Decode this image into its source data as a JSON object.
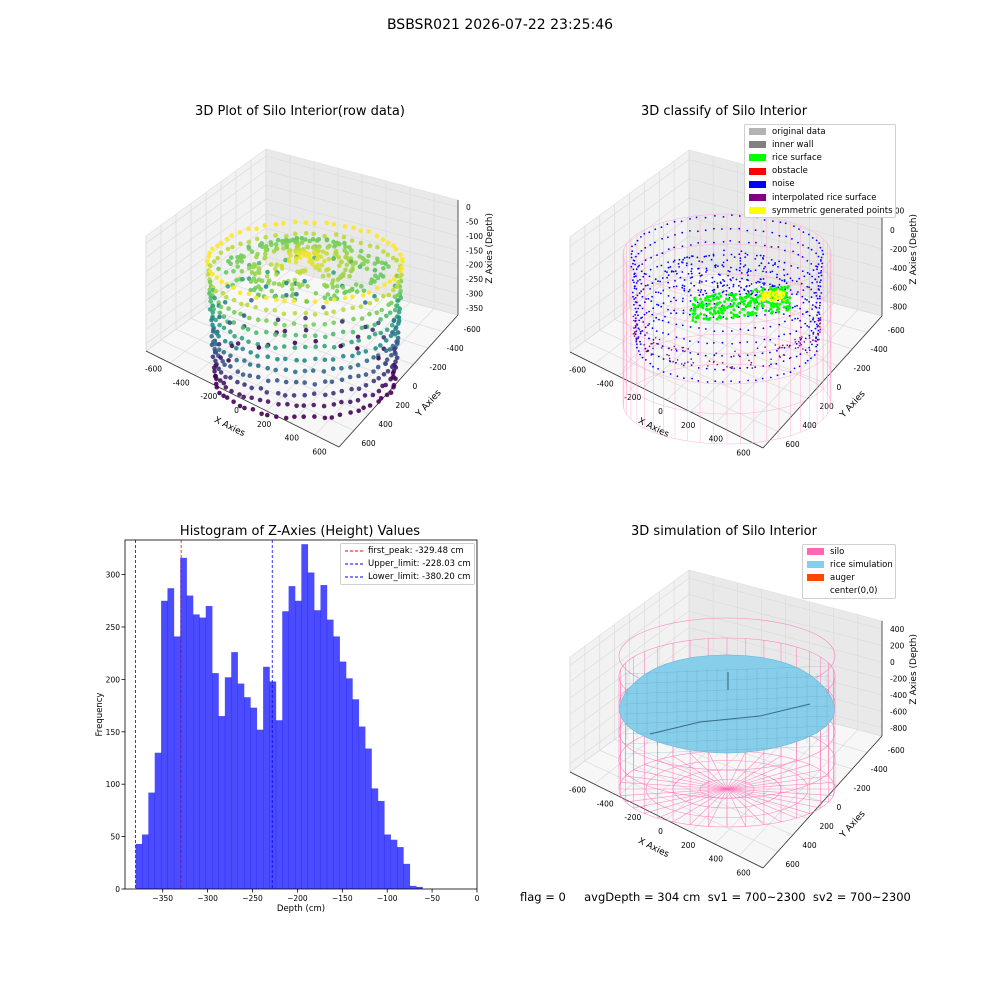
{
  "suptitle": "BSBSR021 2026-07-22 23:25:46",
  "footer": "flag = 0     avgDepth = 304 cm  sv1 = 700~2300  sv2 = 700~2300",
  "chart_data": [
    {
      "type": "scatter",
      "projection": "3d",
      "title": "3D Plot of Silo Interior(row data)",
      "xlabel": "X Axies",
      "ylabel": "Y Axies",
      "zlabel": "Z Axies (Depth)",
      "xticks": [
        "-600",
        "-400",
        "-200",
        "0",
        "200",
        "400",
        "600"
      ],
      "yticks": [
        "-600",
        "-400",
        "-200",
        "0",
        "200",
        "400",
        "600"
      ],
      "zticks": [
        "0",
        "-50",
        "-100",
        "-150",
        "-200",
        "-250",
        "-300",
        "-350"
      ],
      "xlim": [
        -700,
        700
      ],
      "ylim": [
        -700,
        700
      ],
      "zlim": [
        -380,
        0
      ],
      "colormap": "viridis"
    },
    {
      "type": "scatter",
      "projection": "3d",
      "title": "3D classify of Silo Interior",
      "xlabel": "X Axies",
      "ylabel": "Y Axies",
      "zlabel": "Z Axies (Depth)",
      "xticks": [
        "-600",
        "-400",
        "-200",
        "0",
        "200",
        "400",
        "600"
      ],
      "yticks": [
        "-600",
        "-400",
        "-200",
        "0",
        "200",
        "400",
        "600"
      ],
      "zticks": [
        "200",
        "0",
        "-200",
        "-400",
        "-600",
        "-800"
      ],
      "legend": [
        {
          "label": "original data",
          "color": "#b3b3b3"
        },
        {
          "label": "inner wall",
          "color": "#808080"
        },
        {
          "label": "rice surface",
          "color": "#00ff00"
        },
        {
          "label": "obstacle",
          "color": "#ff0000"
        },
        {
          "label": "noise",
          "color": "#0000ff"
        },
        {
          "label": "interpolated rice surface",
          "color": "#800080"
        },
        {
          "label": "symmetric generated points",
          "color": "#ffff00"
        }
      ],
      "legend_loc": "upper right"
    },
    {
      "type": "bar",
      "title": "Histogram of Z-Axies (Height) Values",
      "xlabel": "Depth (cm)",
      "ylabel": "Frequency",
      "xlim": [
        -392,
        0
      ],
      "ylim": [
        0,
        333
      ],
      "xticks": [
        -350,
        -300,
        -250,
        -200,
        -150,
        -100,
        -50,
        0
      ],
      "xticklabels": [
        "−350",
        "−300",
        "−250",
        "−200",
        "−150",
        "−100",
        "−50",
        "0"
      ],
      "yticks": [
        0,
        50,
        100,
        150,
        200,
        250,
        300
      ],
      "bin_start": -380.2,
      "bin_width": 7.1,
      "values": [
        43,
        52,
        92,
        130,
        275,
        287,
        241,
        316,
        280,
        262,
        259,
        270,
        206,
        165,
        202,
        226,
        196,
        183,
        173,
        152,
        212,
        198,
        161,
        265,
        289,
        275,
        329,
        302,
        266,
        290,
        257,
        241,
        217,
        201,
        181,
        155,
        134,
        96,
        84,
        52,
        47,
        40,
        24,
        3,
        2
      ],
      "color": "#0000ff",
      "vlines": [
        {
          "x": -329.48,
          "color": "#ff0000",
          "label": "first_peak: -329.48 cm"
        },
        {
          "x": -228.03,
          "color": "#0000ff",
          "label": "Upper_limit: -228.03 cm"
        },
        {
          "x": -380.2,
          "color": "#0000ff",
          "label": "Lower_limit: -380.20 cm"
        }
      ],
      "legend_loc": "upper right"
    },
    {
      "type": "surface",
      "projection": "3d",
      "title": "3D simulation of Silo Interior",
      "xlabel": "X Axies",
      "ylabel": "Y Axies",
      "zlabel": "Z Axies (Depth)",
      "xticks": [
        "-600",
        "-400",
        "-200",
        "0",
        "200",
        "400",
        "600"
      ],
      "yticks": [
        "-600",
        "-400",
        "-200",
        "0",
        "200",
        "400",
        "600"
      ],
      "zticks": [
        "400",
        "200",
        "0",
        "-200",
        "-400",
        "-600",
        "-800"
      ],
      "legend": [
        {
          "label": "silo",
          "color": "#ff69b4"
        },
        {
          "label": "rice simulation",
          "color": "#87ceeb"
        },
        {
          "label": "auger",
          "color": "#ff4500"
        },
        {
          "label": "center(0,0)",
          "color": "#ffffff"
        }
      ],
      "legend_loc": "upper right"
    }
  ]
}
